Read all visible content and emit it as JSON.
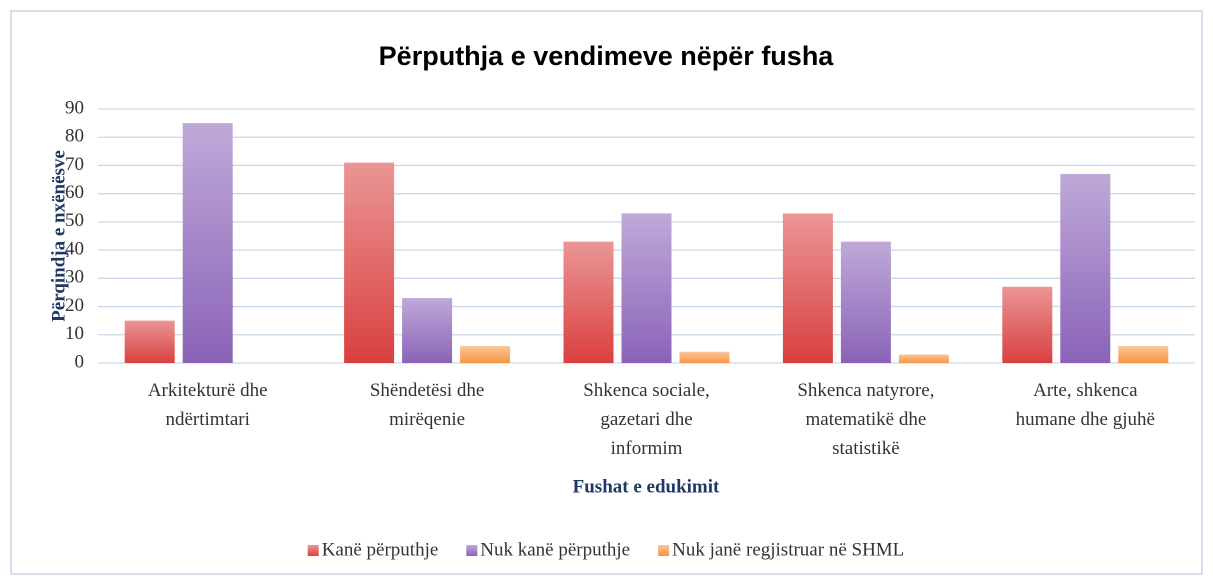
{
  "chart_data": {
    "type": "bar",
    "title": "Përputhja e vendimeve nëpër fusha",
    "x_label": "Fushat e edukimit",
    "y_label": "Përqindja e nxënësve",
    "categories": [
      "Arkitekturë dhe ndërtimtari",
      "Shëndetësi dhe mirëqenie",
      "Shkenca sociale, gazetari dhe informim",
      "Shkenca natyrore, matematikë dhe statistikë",
      "Arte, shkenca humane dhe gjuhë"
    ],
    "series": [
      {
        "name": "Kanë përputhje",
        "color": "#d9403f",
        "values": [
          15,
          71,
          43,
          53,
          27
        ]
      },
      {
        "name": "Nuk kanë përputhje",
        "color": "#8a63b8",
        "values": [
          85,
          23,
          53,
          43,
          67
        ]
      },
      {
        "name": "Nuk janë regjistruar në SHML",
        "color": "#f79646",
        "values": [
          0,
          6,
          4,
          3,
          6
        ]
      }
    ],
    "ylim": [
      0,
      90
    ],
    "yticks": [
      0,
      10,
      20,
      30,
      40,
      50,
      60,
      70,
      80,
      90
    ],
    "grid": true,
    "legend": "bottom"
  }
}
